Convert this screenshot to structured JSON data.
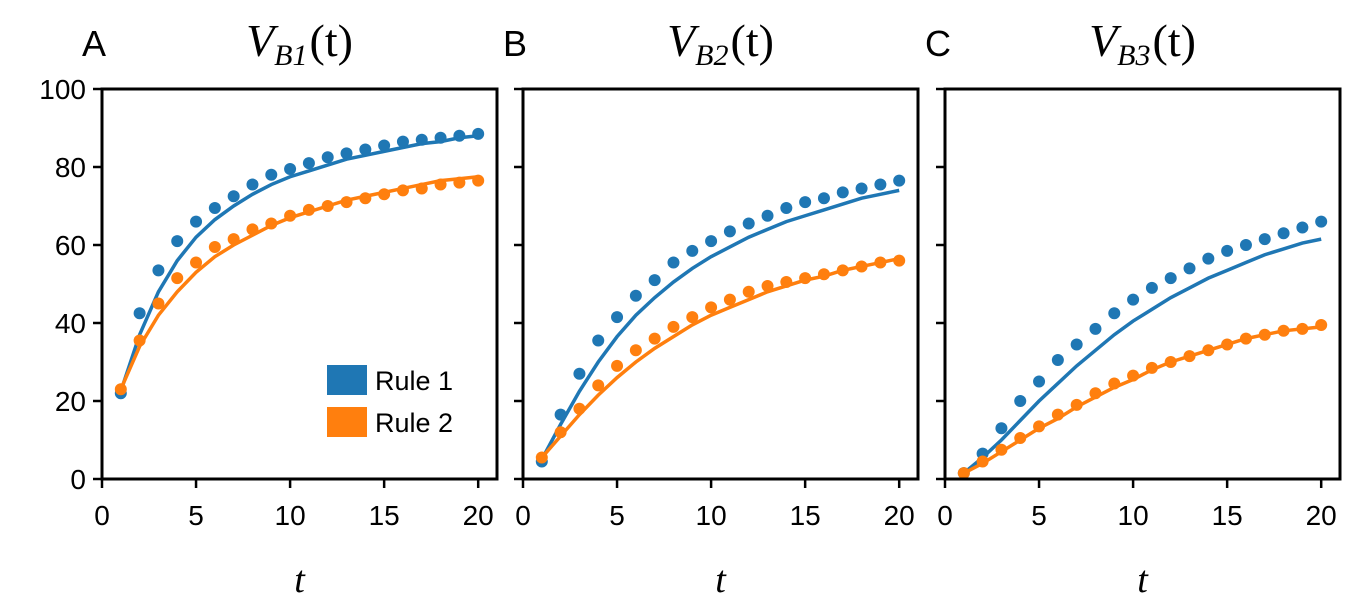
{
  "chart_data": [
    {
      "type": "scatter",
      "panel_label": "A",
      "title": {
        "main": "V",
        "sub": "B1",
        "rest": "(t)"
      },
      "xlabel": "t",
      "x": [
        1,
        2,
        3,
        4,
        5,
        6,
        7,
        8,
        9,
        10,
        11,
        12,
        13,
        14,
        15,
        16,
        17,
        18,
        19,
        20
      ],
      "xlim": [
        0,
        21
      ],
      "xticks": [
        0,
        5,
        10,
        15,
        20
      ],
      "ylim": [
        0,
        100
      ],
      "yticks": [
        0,
        20,
        40,
        60,
        80,
        100
      ],
      "show_ytick_labels": true,
      "legend": "lower right",
      "series": [
        {
          "name": "Rule 1",
          "color": "#1f77b4",
          "values": [
            22,
            42.5,
            53.5,
            61,
            66,
            69.5,
            72.5,
            75.5,
            78,
            79.5,
            81,
            82.5,
            83.5,
            84.5,
            85.5,
            86.5,
            87,
            87.5,
            88,
            88.5
          ],
          "fit": [
            22.5,
            37,
            48,
            56,
            62,
            66.5,
            70,
            73,
            75.5,
            77.5,
            79,
            80.5,
            82,
            83,
            84,
            85,
            86,
            86.5,
            87.5,
            88
          ]
        },
        {
          "name": "Rule 2",
          "color": "#ff7f0e",
          "values": [
            23,
            35.5,
            45,
            51.5,
            55.5,
            59.5,
            61.5,
            64,
            65.5,
            67.5,
            69,
            70,
            71,
            72,
            73,
            74,
            74.5,
            75.5,
            76,
            76.5
          ],
          "fit": [
            23,
            34,
            42,
            48,
            53,
            57,
            60,
            62.5,
            65,
            67,
            68.5,
            70,
            71.5,
            72.5,
            73.5,
            74.5,
            75.5,
            76.5,
            77,
            77.5
          ]
        }
      ]
    },
    {
      "type": "scatter",
      "panel_label": "B",
      "title": {
        "main": "V",
        "sub": "B2",
        "rest": "(t)"
      },
      "xlabel": "t",
      "x": [
        1,
        2,
        3,
        4,
        5,
        6,
        7,
        8,
        9,
        10,
        11,
        12,
        13,
        14,
        15,
        16,
        17,
        18,
        19,
        20
      ],
      "xlim": [
        0,
        21
      ],
      "xticks": [
        0,
        5,
        10,
        15,
        20
      ],
      "ylim": [
        0,
        100
      ],
      "yticks": [
        0,
        20,
        40,
        60,
        80,
        100
      ],
      "show_ytick_labels": false,
      "legend": false,
      "series": [
        {
          "name": "Rule 1",
          "color": "#1f77b4",
          "values": [
            4.5,
            16.5,
            27,
            35.5,
            41.5,
            47,
            51,
            55.5,
            58.5,
            61,
            63.5,
            65.5,
            67.5,
            69.5,
            71,
            72,
            73.5,
            74.5,
            75.5,
            76.5
          ],
          "fit": [
            5,
            14,
            22.5,
            30,
            36.5,
            42,
            46.5,
            50.5,
            54,
            57,
            59.5,
            62,
            64,
            66,
            67.5,
            69,
            70.5,
            72,
            73,
            74
          ]
        },
        {
          "name": "Rule 2",
          "color": "#ff7f0e",
          "values": [
            5.5,
            12,
            18,
            24,
            29,
            33,
            36,
            39,
            41.5,
            44,
            46,
            48,
            49.5,
            50.5,
            51.5,
            52.5,
            53.5,
            54.5,
            55.5,
            56
          ],
          "fit": [
            5.5,
            11,
            16.5,
            21.5,
            26,
            30,
            33.5,
            36.5,
            39.5,
            42,
            44,
            46,
            48,
            49.5,
            51,
            52,
            53.5,
            54.5,
            55.5,
            56.5
          ]
        }
      ]
    },
    {
      "type": "scatter",
      "panel_label": "C",
      "title": {
        "main": "V",
        "sub": "B3",
        "rest": "(t)"
      },
      "xlabel": "t",
      "x": [
        1,
        2,
        3,
        4,
        5,
        6,
        7,
        8,
        9,
        10,
        11,
        12,
        13,
        14,
        15,
        16,
        17,
        18,
        19,
        20
      ],
      "xlim": [
        0,
        21
      ],
      "xticks": [
        0,
        5,
        10,
        15,
        20
      ],
      "ylim": [
        0,
        100
      ],
      "yticks": [
        0,
        20,
        40,
        60,
        80,
        100
      ],
      "show_ytick_labels": false,
      "legend": false,
      "series": [
        {
          "name": "Rule 1",
          "color": "#1f77b4",
          "values": [
            1.5,
            6.5,
            13,
            20,
            25,
            30.5,
            34.5,
            38.5,
            42.5,
            46,
            49,
            51.5,
            54,
            56.5,
            58.5,
            60,
            61.5,
            63,
            64.5,
            66
          ],
          "fit": [
            1.5,
            5.5,
            10,
            15,
            20,
            24.5,
            29,
            33,
            37,
            40.5,
            43.5,
            46.5,
            49,
            51.5,
            53.5,
            55.5,
            57.5,
            59,
            60.5,
            61.5
          ]
        },
        {
          "name": "Rule 2",
          "color": "#ff7f0e",
          "values": [
            1.5,
            4.5,
            7.5,
            10.5,
            13.5,
            16.5,
            19,
            22,
            24.5,
            26.5,
            28.5,
            30,
            31.5,
            33,
            34.5,
            36,
            37,
            38,
            38.5,
            39.5
          ],
          "fit": [
            1.5,
            4,
            7,
            10,
            13,
            15.5,
            18.5,
            21,
            23.5,
            25.5,
            28,
            30,
            31.5,
            33,
            34.5,
            36,
            37,
            38,
            38.5,
            39
          ]
        }
      ]
    }
  ]
}
